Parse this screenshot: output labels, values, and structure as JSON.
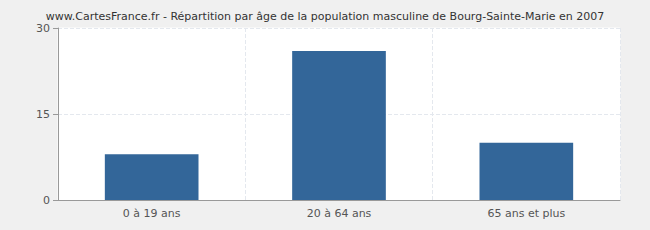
{
  "chart_data": {
    "type": "bar",
    "title": "www.CartesFrance.fr - Répartition par âge de la population masculine de Bourg-Sainte-Marie en 2007",
    "categories": [
      "0 à 19 ans",
      "20 à 64 ans",
      "65 ans et plus"
    ],
    "values": [
      8,
      26,
      10
    ],
    "color": "#336699",
    "ylim": [
      0,
      30
    ],
    "yticks": [
      0,
      15,
      30
    ],
    "grid": true
  }
}
